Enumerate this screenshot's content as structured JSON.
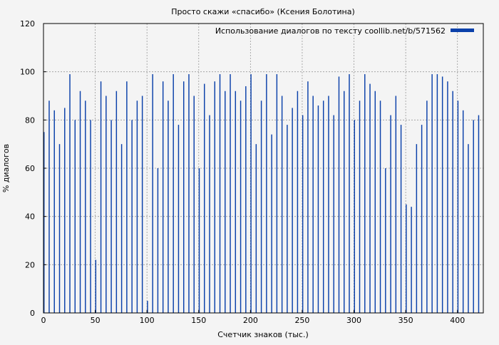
{
  "chart_data": {
    "type": "bar",
    "title": "Просто скажи «спасибо» (Ксения Болотина)",
    "xlabel": "Счетчик знаков (тыс.)",
    "ylabel": "% диалогов",
    "xlim": [
      0,
      425
    ],
    "ylim": [
      0,
      120
    ],
    "xticks": [
      0,
      50,
      100,
      150,
      200,
      250,
      300,
      350,
      400
    ],
    "yticks": [
      0,
      20,
      40,
      60,
      80,
      100,
      120
    ],
    "grid": true,
    "legend_position": "top-right",
    "colors": {
      "series": "#0a40aa",
      "background": "#f4f4f4",
      "plot_background": "#f4f4f4",
      "grid": "#999999",
      "axis": "#000000"
    },
    "series": [
      {
        "name": "Использование диалогов по тексту coollib.net/b/571562",
        "bin_width": 1,
        "x": [
          0,
          5,
          10,
          15,
          20,
          25,
          30,
          35,
          40,
          45,
          50,
          55,
          60,
          65,
          70,
          75,
          80,
          85,
          90,
          95,
          100,
          105,
          110,
          115,
          120,
          125,
          130,
          135,
          140,
          145,
          150,
          155,
          160,
          165,
          170,
          175,
          180,
          185,
          190,
          195,
          200,
          205,
          210,
          215,
          220,
          225,
          230,
          235,
          240,
          245,
          250,
          255,
          260,
          265,
          270,
          275,
          280,
          285,
          290,
          295,
          300,
          305,
          310,
          315,
          320,
          325,
          330,
          335,
          340,
          345,
          350,
          355,
          360,
          365,
          370,
          375,
          380,
          385,
          390,
          395,
          400,
          405,
          410,
          415,
          420
        ],
        "values": [
          75,
          88,
          84,
          70,
          85,
          99,
          80,
          92,
          88,
          80,
          22,
          96,
          90,
          80,
          92,
          70,
          96,
          80,
          88,
          90,
          5,
          99,
          60,
          96,
          88,
          99,
          78,
          96,
          99,
          90,
          60,
          95,
          82,
          96,
          99,
          92,
          99,
          92,
          88,
          94,
          99,
          70,
          88,
          99,
          74,
          99,
          90,
          78,
          85,
          92,
          82,
          96,
          90,
          86,
          88,
          90,
          82,
          98,
          92,
          99,
          80,
          88,
          99,
          95,
          92,
          88,
          60,
          82,
          90,
          78,
          45,
          44,
          70,
          78,
          88,
          99,
          99,
          98,
          96,
          92,
          88,
          84,
          70,
          80,
          82
        ]
      }
    ]
  }
}
